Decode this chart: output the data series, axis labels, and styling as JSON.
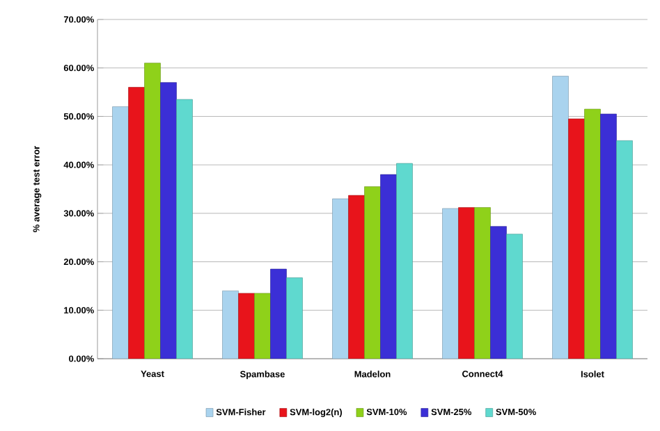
{
  "chart_data": {
    "type": "bar",
    "ylabel": "% average test error",
    "categories": [
      "Yeast",
      "Spambase",
      "Madelon",
      "Connect4",
      "Isolet"
    ],
    "series": [
      {
        "name": "SVM-Fisher",
        "color": "#a9d3ee",
        "values": [
          52,
          14,
          33,
          31,
          58.3
        ]
      },
      {
        "name": "SVM-log2(n)",
        "color": "#e8141b",
        "values": [
          56,
          13.5,
          33.7,
          31.2,
          49.5
        ]
      },
      {
        "name": "SVM-10%",
        "color": "#8fd11a",
        "values": [
          61,
          13.5,
          35.5,
          31.2,
          51.5
        ]
      },
      {
        "name": "SVM-25%",
        "color": "#3b2fd6",
        "values": [
          57,
          18.5,
          38,
          27.3,
          50.5
        ]
      },
      {
        "name": "SVM-50%",
        "color": "#5fd9cf",
        "values": [
          53.5,
          16.7,
          40.3,
          25.7,
          45
        ]
      }
    ],
    "ylim": [
      0,
      70
    ],
    "yticks": [
      {
        "value": 0,
        "label": "0.00%"
      },
      {
        "value": 10,
        "label": "10.00%"
      },
      {
        "value": 20,
        "label": "20.00%"
      },
      {
        "value": 30,
        "label": "30.00%"
      },
      {
        "value": 40,
        "label": "40.00%"
      },
      {
        "value": 50,
        "label": "50.00%"
      },
      {
        "value": 60,
        "label": "60.00%"
      },
      {
        "value": 70,
        "label": "70.00%"
      }
    ],
    "grid": "y",
    "legend": "bottom"
  }
}
